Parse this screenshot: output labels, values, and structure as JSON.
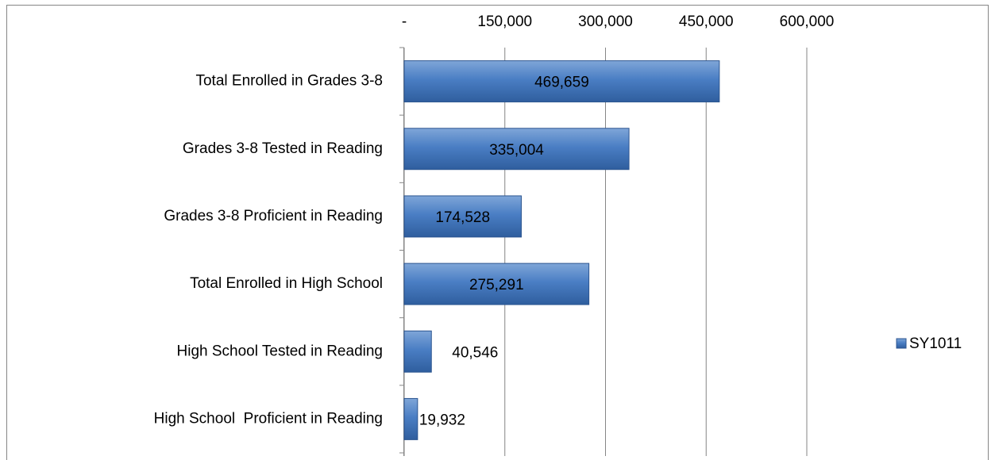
{
  "chart_data": {
    "type": "hbar",
    "categories": [
      "Total Enrolled in Grades 3-8",
      "Grades 3-8 Tested in Reading",
      "Grades 3-8 Proficient in Reading",
      "Total Enrolled in High School",
      "High School Tested in Reading",
      "High School  Proficient in Reading"
    ],
    "series": [
      {
        "name": "SY1011",
        "color": "#4f81bd",
        "values": [
          469659,
          335004,
          174528,
          275291,
          40546,
          19932
        ],
        "value_labels": [
          "469,659",
          "335,004",
          "174,528",
          "275,291",
          "40,546",
          "19,932"
        ]
      }
    ],
    "xlim": [
      0,
      600000
    ],
    "xticks": [
      {
        "value": 0,
        "label": "-"
      },
      {
        "value": 150000,
        "label": "150,000"
      },
      {
        "value": 300000,
        "label": "300,000"
      },
      {
        "value": 450000,
        "label": "450,000"
      },
      {
        "value": 600000,
        "label": "600,000"
      }
    ],
    "grid": true,
    "legend": "right"
  }
}
